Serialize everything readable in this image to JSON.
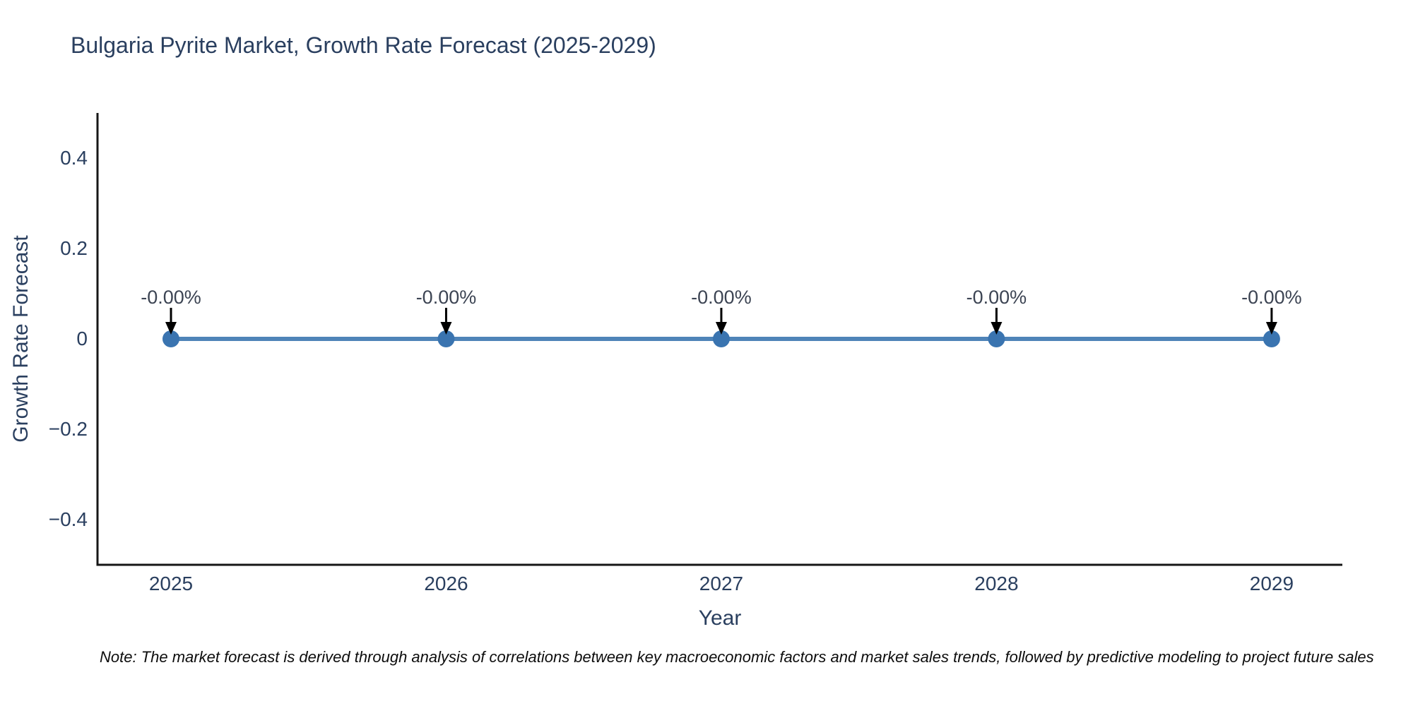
{
  "title": "Bulgaria Pyrite Market, Growth Rate Forecast (2025-2029)",
  "note": "Note: The market forecast is derived through analysis of correlations between key macroeconomic factors and market sales trends, followed by predictive modeling to project future sales",
  "chart_data": {
    "type": "line",
    "title": "Bulgaria Pyrite Market, Growth Rate Forecast (2025-2029)",
    "xlabel": "Year",
    "ylabel": "Growth Rate Forecast",
    "x": [
      2025,
      2026,
      2027,
      2028,
      2029
    ],
    "y": [
      0,
      0,
      0,
      0,
      0
    ],
    "point_labels": [
      "-0.00%",
      "-0.00%",
      "-0.00%",
      "-0.00%",
      "-0.00%"
    ],
    "xtick_labels": [
      "2025",
      "2026",
      "2027",
      "2028",
      "2029"
    ],
    "ytick_values": [
      0.4,
      0.2,
      0,
      -0.2,
      -0.4
    ],
    "ytick_labels": [
      "0.4",
      "0.2",
      "0",
      "−0.2",
      "−0.4"
    ],
    "xlim": [
      2024.733,
      2029.257
    ],
    "ylim": [
      -0.5,
      0.5
    ],
    "grid": false,
    "legend": "none",
    "colors": {
      "line": "#4f84b8",
      "marker": "#3a74b0",
      "axis": "#161616",
      "tick_text": "#2a3f5f",
      "annotation_text": "#3c4453",
      "arrow": "#000000"
    }
  }
}
